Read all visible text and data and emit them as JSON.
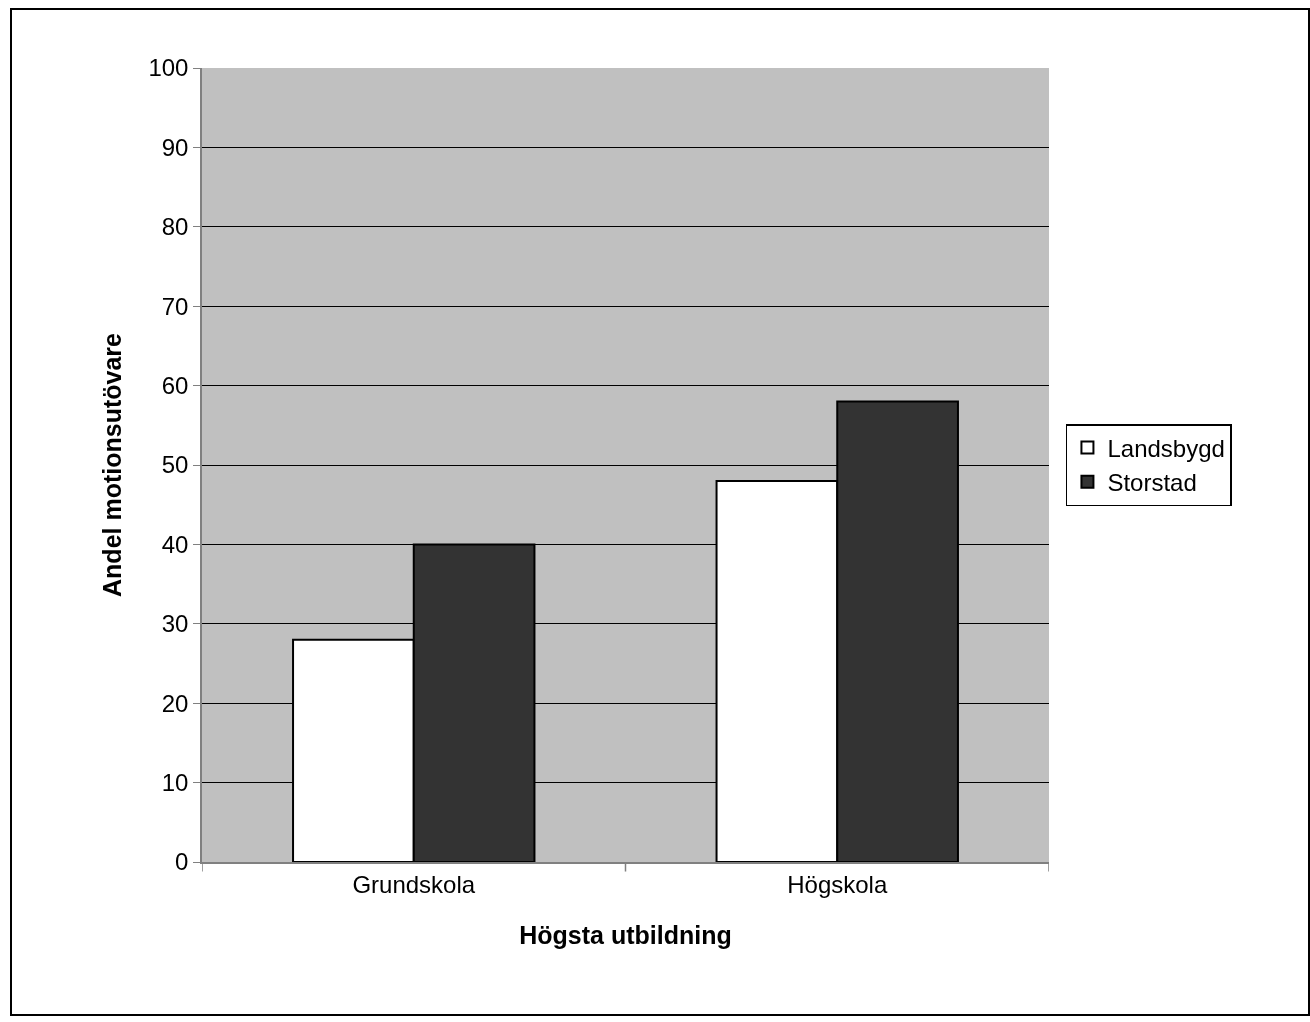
{
  "chart_data": {
    "type": "bar",
    "xlabel": "Högsta utbildning",
    "ylabel": "Andel motionsutövare",
    "categories": [
      "Grundskola",
      "Högskola"
    ],
    "series": [
      {
        "name": "Landsbygd",
        "color": "#ffffff",
        "values": [
          28,
          48
        ]
      },
      {
        "name": "Storstad",
        "color": "#333333",
        "values": [
          40,
          58
        ]
      }
    ],
    "ylim": [
      0,
      100
    ],
    "yticks": [
      0,
      10,
      20,
      30,
      40,
      50,
      60,
      70,
      80,
      90,
      100
    ],
    "grid": "y",
    "legend": "right"
  }
}
